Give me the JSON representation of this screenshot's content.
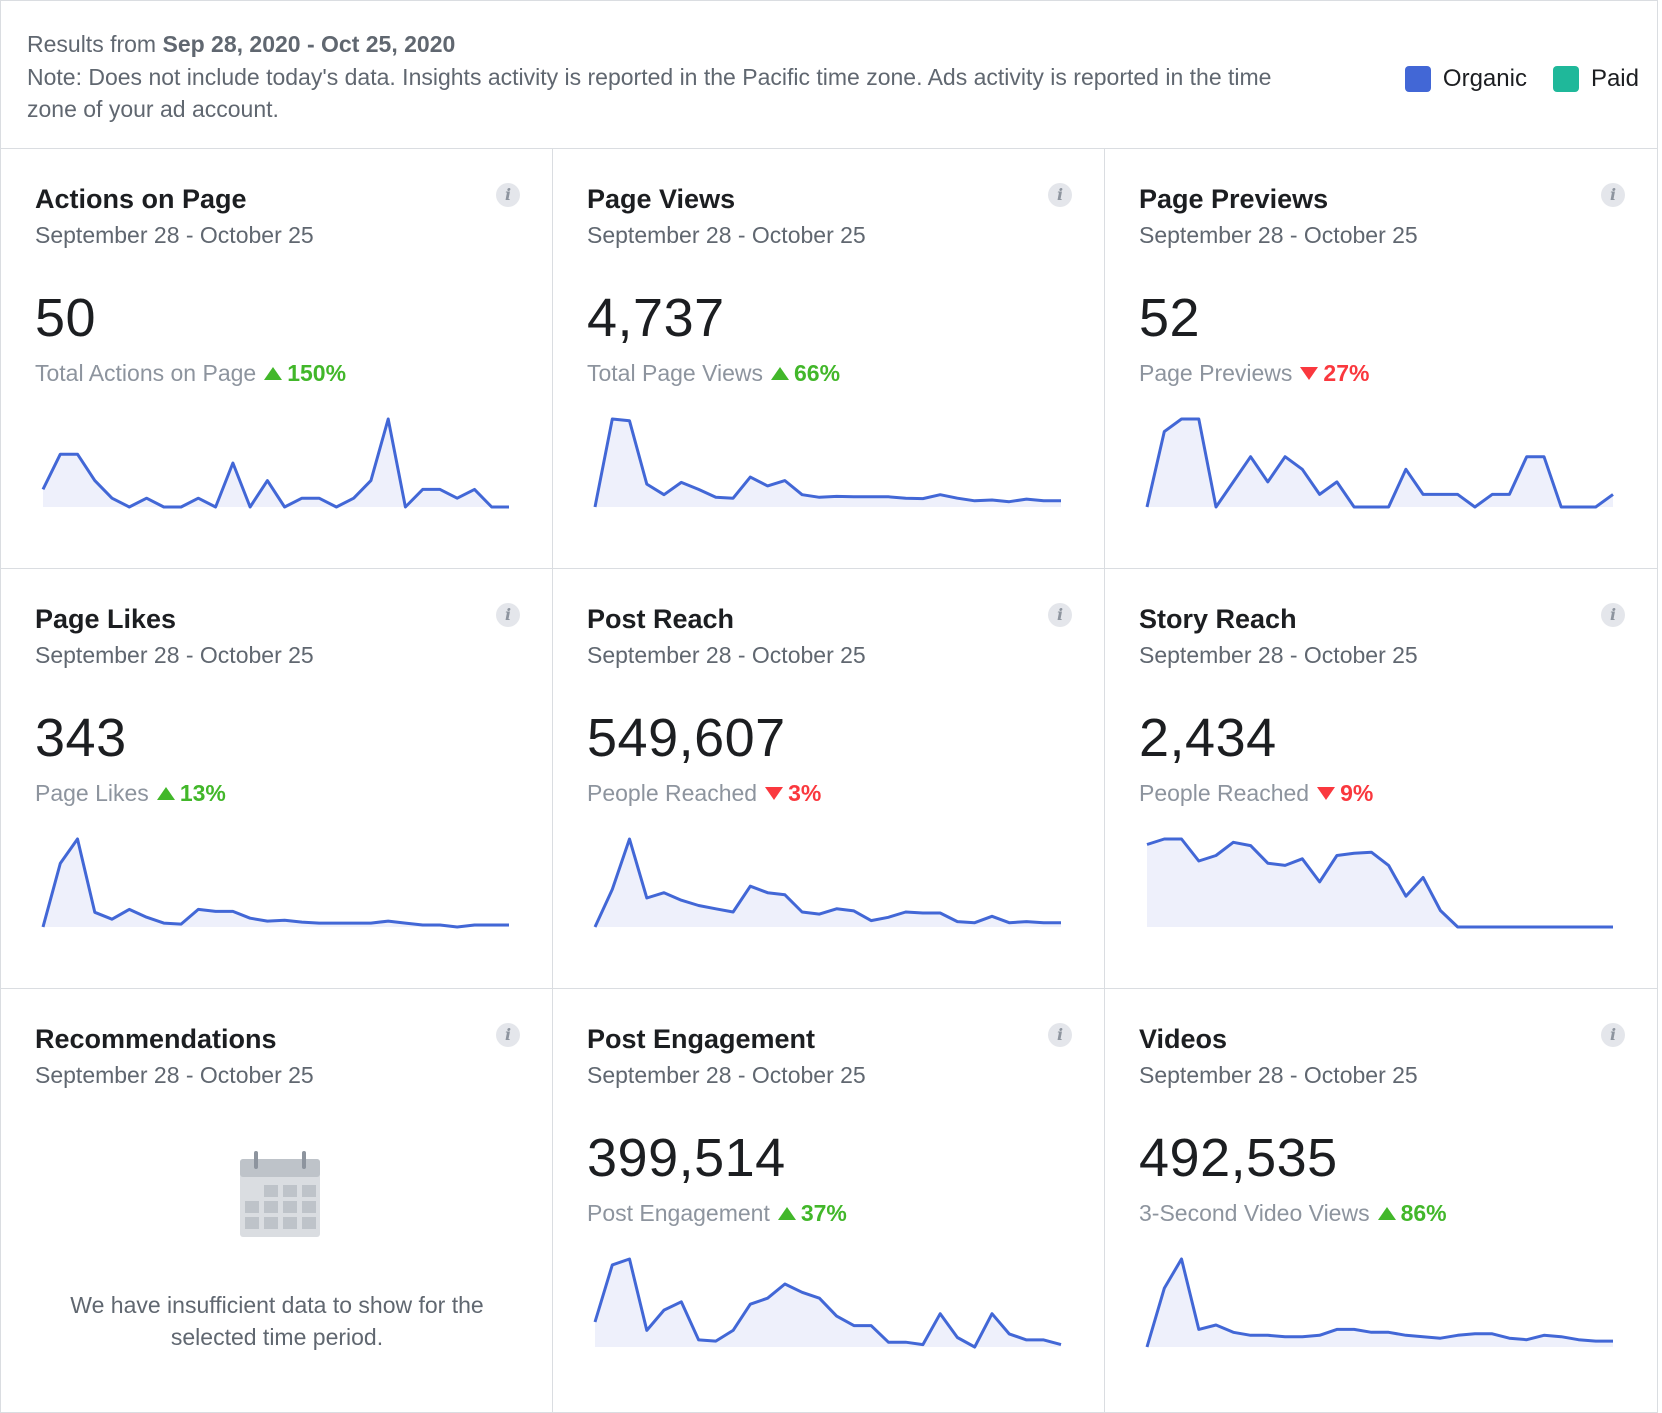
{
  "header": {
    "results_prefix": "Results from",
    "results_range": "Sep 28, 2020 - Oct 25, 2020",
    "note": "Note: Does not include today's data. Insights activity is reported in the Pacific time zone. Ads activity is reported in the time zone of your ad account.",
    "legend": [
      {
        "label": "Organic",
        "color": "#4267d6"
      },
      {
        "label": "Paid",
        "color": "#1fb89a"
      }
    ]
  },
  "colors": {
    "line": "#4267d6",
    "fill": "#eef0fb"
  },
  "cards": [
    {
      "title": "Actions on Page",
      "range": "September 28 - October 25",
      "value": "50",
      "metric": "Total Actions on Page",
      "change": "150%",
      "direction": "up",
      "series": [
        1,
        3,
        3,
        1.5,
        0.5,
        0,
        0.5,
        0,
        0,
        0.5,
        0,
        2.5,
        0,
        1.5,
        0,
        0.5,
        0.5,
        0,
        0.5,
        1.5,
        5,
        0,
        1,
        1,
        0.5,
        1,
        0,
        0
      ]
    },
    {
      "title": "Page Views",
      "range": "September 28 - October 25",
      "value": "4,737",
      "metric": "Total Page Views",
      "change": "66%",
      "direction": "up",
      "series": [
        0,
        500,
        490,
        130,
        70,
        140,
        100,
        55,
        50,
        170,
        120,
        150,
        70,
        55,
        60,
        58,
        58,
        58,
        50,
        48,
        70,
        50,
        35,
        40,
        30,
        45,
        35,
        35
      ]
    },
    {
      "title": "Page Previews",
      "range": "September 28 - October 25",
      "value": "52",
      "metric": "Page Previews",
      "change": "27%",
      "direction": "down",
      "series": [
        0,
        3,
        3.5,
        3.5,
        0,
        1,
        2,
        1,
        2,
        1.5,
        0.5,
        1,
        0,
        0,
        0,
        1.5,
        0.5,
        0.5,
        0.5,
        0,
        0.5,
        0.5,
        2,
        2,
        0,
        0,
        0,
        0.5
      ]
    },
    {
      "title": "Page Likes",
      "range": "September 28 - October 25",
      "value": "343",
      "metric": "Page Likes",
      "change": "13%",
      "direction": "up",
      "series": [
        0,
        65,
        90,
        15,
        8,
        18,
        10,
        4,
        3,
        18,
        16,
        16,
        9,
        6,
        7,
        5,
        4,
        4,
        4,
        4,
        6,
        4,
        2,
        2,
        0,
        2,
        2,
        2
      ]
    },
    {
      "title": "Post Reach",
      "range": "September 28 - October 25",
      "value": "549,607",
      "metric": "People Reached",
      "change": "3%",
      "direction": "down",
      "series": [
        0,
        35,
        82,
        27,
        32,
        25,
        20,
        17,
        14,
        38,
        32,
        30,
        14,
        12,
        17,
        15,
        6,
        9,
        14,
        13,
        13,
        5,
        4,
        10,
        4,
        5,
        4,
        4
      ]
    },
    {
      "title": "Story Reach",
      "range": "September 28 - October 25",
      "value": "2,434",
      "metric": "People Reached",
      "change": "9%",
      "direction": "down",
      "series": [
        75,
        80,
        80,
        60,
        65,
        77,
        74,
        58,
        56,
        62,
        41,
        65,
        67,
        68,
        56,
        28,
        45,
        15,
        0,
        0,
        0,
        0,
        0,
        0,
        0,
        0,
        0,
        0
      ]
    },
    {
      "title": "Recommendations",
      "range": "September 28 - October 25",
      "empty": true,
      "empty_message": "We have insufficient data to show for the selected time period."
    },
    {
      "title": "Post Engagement",
      "range": "September 28 - October 25",
      "value": "399,514",
      "metric": "Post Engagement",
      "change": "37%",
      "direction": "up",
      "series": [
        25,
        73,
        78,
        18,
        35,
        42,
        10,
        9,
        18,
        40,
        45,
        57,
        50,
        45,
        30,
        22,
        22,
        8,
        8,
        6,
        32,
        12,
        4,
        32,
        15,
        10,
        10,
        6
      ]
    },
    {
      "title": "Videos",
      "range": "September 28 - October 25",
      "value": "492,535",
      "metric": "3-Second Video Views",
      "change": "86%",
      "direction": "up",
      "series": [
        0,
        40,
        60,
        12,
        15,
        10,
        8,
        8,
        7,
        7,
        8,
        12,
        12,
        10,
        10,
        8,
        7,
        6,
        8,
        9,
        9,
        6,
        5,
        8,
        7,
        5,
        4,
        4
      ]
    }
  ]
}
